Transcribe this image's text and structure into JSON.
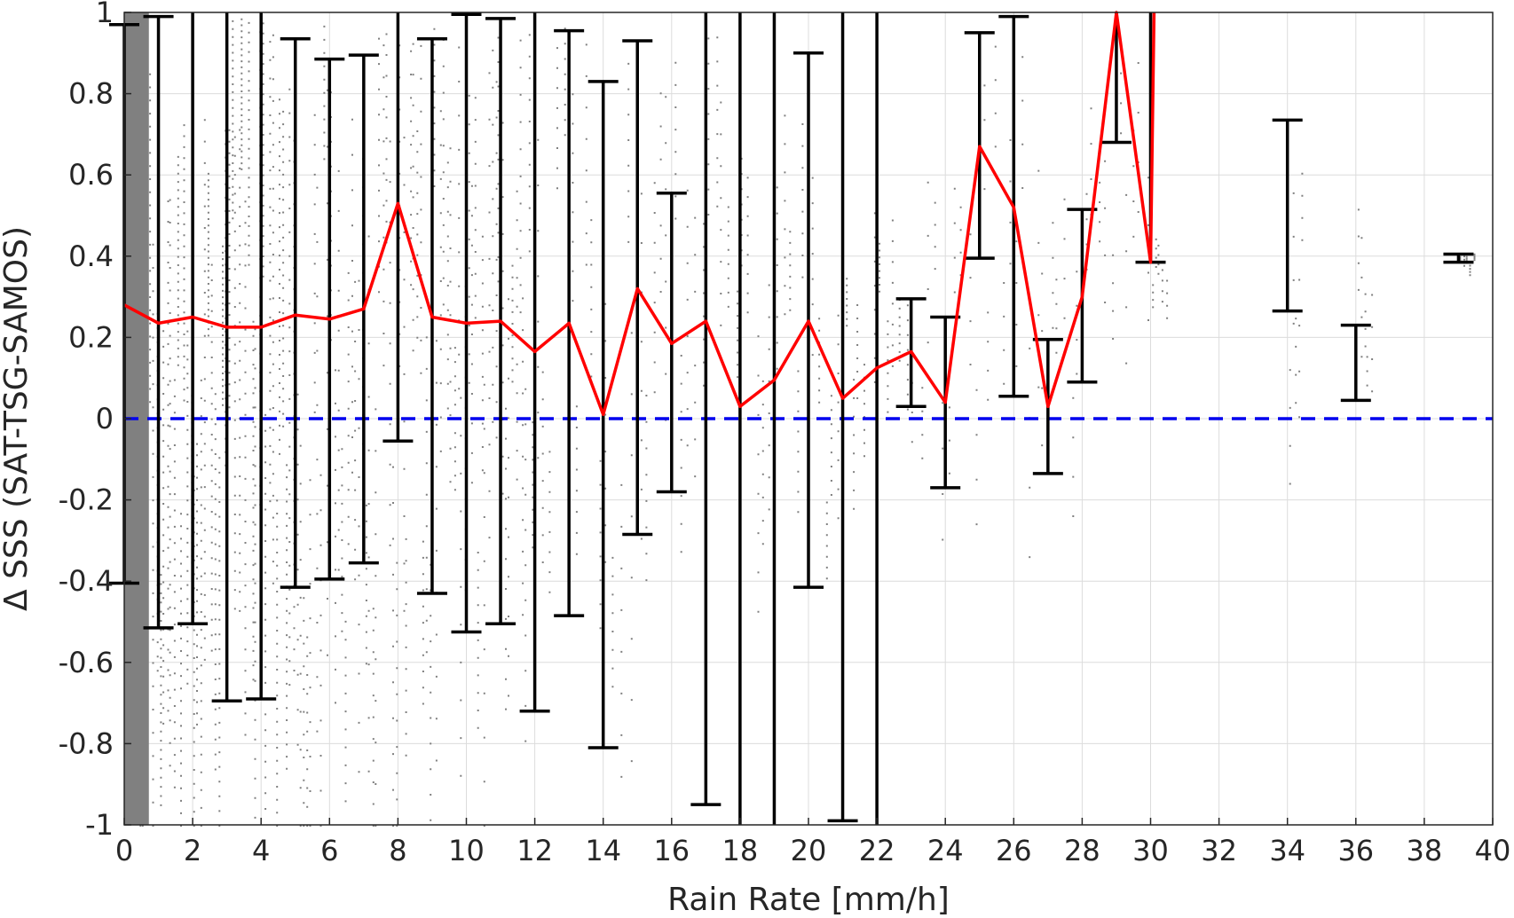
{
  "chart_data": {
    "type": "scatter",
    "title": "",
    "xlabel": "Rain Rate [mm/h]",
    "ylabel": "Δ SSS (SAT-TSG-SAMOS)",
    "xlim": [
      0,
      40
    ],
    "ylim": [
      -1,
      1
    ],
    "x_ticks": [
      "0",
      "2",
      "4",
      "6",
      "8",
      "10",
      "12",
      "14",
      "16",
      "18",
      "20",
      "22",
      "24",
      "26",
      "28",
      "30",
      "32",
      "34",
      "36",
      "38",
      "40"
    ],
    "y_ticks": [
      "-1",
      "-0.8",
      "-0.6",
      "-0.4",
      "-0.2",
      "0",
      "0.2",
      "0.4",
      "0.6",
      "0.8",
      "1"
    ],
    "grid": true,
    "zero_line": {
      "y": 0,
      "color": "#0000ee",
      "style": "dashed"
    },
    "scatter_color": "#808080",
    "mean_line_color": "#ff0000",
    "errorbar_color": "#000000",
    "mean_line": {
      "x": [
        0,
        1,
        2,
        3,
        4,
        5,
        6,
        7,
        8,
        9,
        10,
        11,
        12,
        13,
        14,
        15,
        16,
        17,
        18,
        19,
        20,
        21,
        22,
        23,
        24,
        25,
        26,
        27,
        28,
        29,
        30,
        30.1
      ],
      "y": [
        0.28,
        0.235,
        0.25,
        0.225,
        0.225,
        0.255,
        0.245,
        0.27,
        0.53,
        0.25,
        0.235,
        0.24,
        0.165,
        0.235,
        0.01,
        0.32,
        0.185,
        0.24,
        0.03,
        0.095,
        0.24,
        0.05,
        0.125,
        0.165,
        0.04,
        0.67,
        0.52,
        0.03,
        0.3,
        1.01,
        0.385,
        1.0
      ]
    },
    "error_bars": [
      {
        "x": 0,
        "low": -0.405,
        "high": 0.97
      },
      {
        "x": 1,
        "low": -0.515,
        "high": 0.99
      },
      {
        "x": 2,
        "low": -0.505,
        "high": 1.05
      },
      {
        "x": 3,
        "low": -0.695,
        "high": 1.05
      },
      {
        "x": 4,
        "low": -0.69,
        "high": 1.05
      },
      {
        "x": 5,
        "low": -0.415,
        "high": 0.935
      },
      {
        "x": 6,
        "low": -0.395,
        "high": 0.885
      },
      {
        "x": 7,
        "low": -0.355,
        "high": 0.895
      },
      {
        "x": 8,
        "low": -0.055,
        "high": 1.05
      },
      {
        "x": 9,
        "low": -0.43,
        "high": 0.935
      },
      {
        "x": 10,
        "low": -0.525,
        "high": 0.995
      },
      {
        "x": 11,
        "low": -0.505,
        "high": 0.985
      },
      {
        "x": 12,
        "low": -0.72,
        "high": 1.05
      },
      {
        "x": 13,
        "low": -0.485,
        "high": 0.955
      },
      {
        "x": 14,
        "low": -0.81,
        "high": 0.83
      },
      {
        "x": 15,
        "low": -0.285,
        "high": 0.93
      },
      {
        "x": 16,
        "low": -0.18,
        "high": 0.555
      },
      {
        "x": 17,
        "low": -0.95,
        "high": 1.05
      },
      {
        "x": 18,
        "low": -1.05,
        "high": 1.05
      },
      {
        "x": 19,
        "low": -1.05,
        "high": 1.05
      },
      {
        "x": 20,
        "low": -0.415,
        "high": 0.9
      },
      {
        "x": 21,
        "low": -0.99,
        "high": 1.05
      },
      {
        "x": 22,
        "low": -1.05,
        "high": 1.05
      },
      {
        "x": 23,
        "low": 0.03,
        "high": 0.295
      },
      {
        "x": 24,
        "low": -0.17,
        "high": 0.25
      },
      {
        "x": 25,
        "low": 0.395,
        "high": 0.95
      },
      {
        "x": 26,
        "low": 0.055,
        "high": 0.99
      },
      {
        "x": 27,
        "low": -0.135,
        "high": 0.195
      },
      {
        "x": 28,
        "low": 0.09,
        "high": 0.515
      },
      {
        "x": 29,
        "low": 0.68,
        "high": 1.05
      },
      {
        "x": 30,
        "low": 0.385,
        "high": 1.05
      },
      {
        "x": 34,
        "low": 0.265,
        "high": 0.735
      },
      {
        "x": 36,
        "low": 0.045,
        "high": 0.23
      },
      {
        "x": 39,
        "low": 0.385,
        "high": 0.405
      }
    ],
    "scatter_spread": [
      {
        "x": 0,
        "low": -1.0,
        "high": 1.0
      },
      {
        "x": 1,
        "low": -1.0,
        "high": 1.0
      },
      {
        "x": 2,
        "low": -0.95,
        "high": 1.0
      },
      {
        "x": 3,
        "low": -1.0,
        "high": 1.0
      },
      {
        "x": 4,
        "low": -0.95,
        "high": 1.0
      },
      {
        "x": 5,
        "low": -0.95,
        "high": 1.0
      },
      {
        "x": 6,
        "low": -0.75,
        "high": 1.0
      },
      {
        "x": 7,
        "low": -0.9,
        "high": 1.0
      },
      {
        "x": 8,
        "low": -0.75,
        "high": 1.0
      },
      {
        "x": 9,
        "low": -0.7,
        "high": 1.0
      },
      {
        "x": 10,
        "low": -0.6,
        "high": 1.0
      },
      {
        "x": 11,
        "low": -0.35,
        "high": 1.0
      },
      {
        "x": 12,
        "low": -0.5,
        "high": 1.0
      },
      {
        "x": 13,
        "low": -0.3,
        "high": 1.0
      },
      {
        "x": 14,
        "low": -0.6,
        "high": 1.0
      },
      {
        "x": 15,
        "low": -0.25,
        "high": 1.0
      },
      {
        "x": 16,
        "low": -0.2,
        "high": 0.85
      },
      {
        "x": 17,
        "low": -0.05,
        "high": 0.95
      },
      {
        "x": 18,
        "low": -0.3,
        "high": 0.7
      },
      {
        "x": 19,
        "low": -0.25,
        "high": 0.6
      },
      {
        "x": 20,
        "low": -0.45,
        "high": 0.6
      },
      {
        "x": 21,
        "low": -0.05,
        "high": 0.6
      },
      {
        "x": 22,
        "low": -0.1,
        "high": 0.45
      },
      {
        "x": 23,
        "low": -0.15,
        "high": 0.6
      },
      {
        "x": 24,
        "low": -0.05,
        "high": 0.55
      },
      {
        "x": 25,
        "low": 0.05,
        "high": 0.95
      },
      {
        "x": 26,
        "low": -0.13,
        "high": 1.0
      },
      {
        "x": 27,
        "low": -0.05,
        "high": 0.45
      },
      {
        "x": 28,
        "low": 0.1,
        "high": 0.7
      },
      {
        "x": 29,
        "low": 0.3,
        "high": 1.0
      },
      {
        "x": 30,
        "low": 0.3,
        "high": 0.5
      },
      {
        "x": 34,
        "low": -0.04,
        "high": 0.6
      },
      {
        "x": 36,
        "low": 0.08,
        "high": 0.58
      },
      {
        "x": 39,
        "low": 0.37,
        "high": 0.41
      }
    ]
  }
}
